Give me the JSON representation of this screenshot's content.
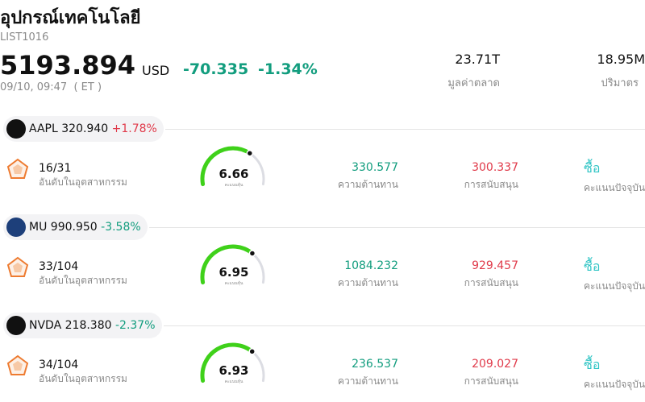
{
  "header": {
    "title": "อุปกรณ์เทคโนโลยี",
    "code": "LIST1016",
    "price": "5193.894",
    "currency": "USD",
    "change": "-70.335",
    "change_pct": "-1.34%",
    "time": "09/10, 09:47  ( ET )",
    "market_cap": {
      "value": "23.71T",
      "label": "มูลค่าตลาด"
    },
    "volume": {
      "value": "18.95M",
      "label": "ปริมาตร"
    }
  },
  "score_lim": [
    0,
    10
  ],
  "stocks": [
    {
      "ticker": "AAPL",
      "price": "320.940",
      "change": "+1.78%",
      "rank": "16/31",
      "rank_label": "อันดับในอุตสาหกรรม",
      "score": 6.66,
      "score_label": "คะแนนหุ้น",
      "resistance": "330.577",
      "resistance_label": "ความต้านทาน",
      "support": "300.337",
      "support_label": "การสนับสนุน",
      "signal": "ซื้อ",
      "signal_label": "คะแนนปัจจุบัน"
    },
    {
      "ticker": "MU",
      "price": "990.950",
      "change": "-3.58%",
      "rank": "33/104",
      "rank_label": "อันดับในอุตสาหกรรม",
      "score": 6.95,
      "score_label": "คะแนนหุ้น",
      "resistance": "1084.232",
      "resistance_label": "ความต้านทาน",
      "support": "929.457",
      "support_label": "การสนับสนุน",
      "signal": "ซื้อ",
      "signal_label": "คะแนนปัจจุบัน"
    },
    {
      "ticker": "NVDA",
      "price": "218.380",
      "change": "-2.37%",
      "rank": "34/104",
      "rank_label": "อันดับในอุตสาหกรรม",
      "score": 6.93,
      "score_label": "คะแนนหุ้น",
      "resistance": "236.537",
      "resistance_label": "ความต้านทาน",
      "support": "209.027",
      "support_label": "การสนับสนุน",
      "signal": "ซื้อ",
      "signal_label": "คะแนนปัจจุบัน"
    }
  ]
}
